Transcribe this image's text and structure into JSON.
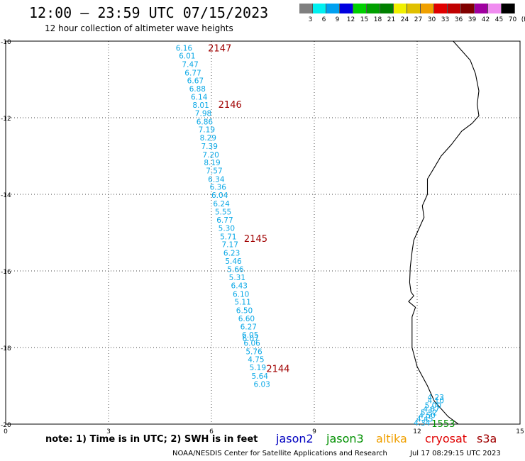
{
  "title": "12:00 – 23:59 UTC 07/15/2023",
  "subtitle": "12 hour collection of altimeter wave heights",
  "color_scale": {
    "labels": [
      "3",
      "6",
      "9",
      "12",
      "15",
      "18",
      "21",
      "24",
      "27",
      "30",
      "33",
      "36",
      "39",
      "42",
      "45",
      "70",
      "(ft)"
    ],
    "colors": [
      "#7f7f7f",
      "#00f0f0",
      "#00a0f0",
      "#0000e0",
      "#00d000",
      "#00a000",
      "#008000",
      "#f0f000",
      "#e0c000",
      "#f0a000",
      "#e00000",
      "#c00000",
      "#800000",
      "#a000a0",
      "#f08cf0",
      "#000000"
    ]
  },
  "note": "note:  1) Time is in UTC;  2) SWH is in feet",
  "satellites": [
    {
      "name": "jason2",
      "color": "#0000c0"
    },
    {
      "name": "jason3",
      "color": "#009000"
    },
    {
      "name": "altika",
      "color": "#f0a000"
    },
    {
      "name": "cryosat",
      "color": "#e00000"
    },
    {
      "name": "s3a",
      "color": "#a00000"
    }
  ],
  "footer": "NOAA/NESDIS Center for Satellite Applications and Research",
  "footer_time": "Jul 17 08:29:15 UTC 2023",
  "map": {
    "lat_ticks": [
      {
        "lat": -10,
        "label": "-10"
      },
      {
        "lat": -12,
        "label": "-12"
      },
      {
        "lat": -14,
        "label": "-14"
      },
      {
        "lat": -16,
        "label": "-16"
      },
      {
        "lat": -18,
        "label": "-18"
      },
      {
        "lat": -20,
        "label": "-20"
      }
    ],
    "lon_ticks": [
      {
        "lon": 0,
        "label": "0"
      },
      {
        "lon": 3,
        "label": "3"
      },
      {
        "lon": 6,
        "label": "6"
      },
      {
        "lon": 9,
        "label": "9"
      },
      {
        "lon": 12,
        "label": "12"
      },
      {
        "lon": 15,
        "label": "15"
      }
    ],
    "lon_range": [
      0,
      15
    ],
    "lat_range": [
      -20,
      -10
    ],
    "coastline": [
      [
        13.05,
        -10.0
      ],
      [
        13.25,
        -10.2
      ],
      [
        13.55,
        -10.5
      ],
      [
        13.7,
        -10.85
      ],
      [
        13.8,
        -11.3
      ],
      [
        13.75,
        -11.65
      ],
      [
        13.8,
        -11.95
      ],
      [
        13.6,
        -12.15
      ],
      [
        13.3,
        -12.35
      ],
      [
        13.0,
        -12.7
      ],
      [
        12.7,
        -13.0
      ],
      [
        12.5,
        -13.3
      ],
      [
        12.3,
        -13.6
      ],
      [
        12.3,
        -14.0
      ],
      [
        12.15,
        -14.3
      ],
      [
        12.2,
        -14.6
      ],
      [
        12.05,
        -14.9
      ],
      [
        11.9,
        -15.2
      ],
      [
        11.85,
        -15.5
      ],
      [
        11.8,
        -15.9
      ],
      [
        11.78,
        -16.3
      ],
      [
        11.82,
        -16.55
      ],
      [
        11.9,
        -16.65
      ],
      [
        11.75,
        -16.8
      ],
      [
        11.95,
        -16.95
      ],
      [
        11.85,
        -17.2
      ],
      [
        11.85,
        -17.6
      ],
      [
        11.85,
        -18.0
      ],
      [
        12.0,
        -18.5
      ],
      [
        12.3,
        -19.0
      ],
      [
        12.5,
        -19.4
      ],
      [
        12.9,
        -19.8
      ],
      [
        13.2,
        -20.0
      ]
    ],
    "tracks": [
      {
        "id": "2147",
        "color": "#a00000",
        "label_pos": [
          5.9,
          -10.18
        ]
      },
      {
        "id": "2146",
        "color": "#a00000",
        "label_pos": [
          6.2,
          -11.65
        ]
      },
      {
        "id": "2145",
        "color": "#a00000",
        "label_pos": [
          6.95,
          -15.15
        ]
      },
      {
        "id": "2144",
        "color": "#a00000",
        "label_pos": [
          7.6,
          -18.55
        ]
      },
      {
        "id": "1553",
        "color": "#009000",
        "label_pos": [
          12.42,
          -19.98
        ]
      }
    ],
    "wave_points": [
      {
        "v": "6.16",
        "lon": 4.96,
        "lat": -10.18
      },
      {
        "v": "6.01",
        "lon": 5.05,
        "lat": -10.38
      },
      {
        "v": "7.47",
        "lon": 5.14,
        "lat": -10.6
      },
      {
        "v": "6.77",
        "lon": 5.22,
        "lat": -10.82
      },
      {
        "v": "6.67",
        "lon": 5.29,
        "lat": -11.03
      },
      {
        "v": "6.88",
        "lon": 5.35,
        "lat": -11.24
      },
      {
        "v": "6.14",
        "lon": 5.4,
        "lat": -11.45
      },
      {
        "v": "8.01",
        "lon": 5.45,
        "lat": -11.67
      },
      {
        "v": "7.98",
        "lon": 5.52,
        "lat": -11.88
      },
      {
        "v": "6.86",
        "lon": 5.56,
        "lat": -12.1
      },
      {
        "v": "7.19",
        "lon": 5.62,
        "lat": -12.31
      },
      {
        "v": "8.29",
        "lon": 5.66,
        "lat": -12.52
      },
      {
        "v": "7.39",
        "lon": 5.7,
        "lat": -12.74
      },
      {
        "v": "7.20",
        "lon": 5.74,
        "lat": -12.96
      },
      {
        "v": "8.19",
        "lon": 5.78,
        "lat": -13.17
      },
      {
        "v": "7.57",
        "lon": 5.84,
        "lat": -13.38
      },
      {
        "v": "6.34",
        "lon": 5.9,
        "lat": -13.6
      },
      {
        "v": "6.36",
        "lon": 5.95,
        "lat": -13.81
      },
      {
        "v": "6.04",
        "lon": 6.0,
        "lat": -14.02
      },
      {
        "v": "6.24",
        "lon": 6.05,
        "lat": -14.24
      },
      {
        "v": "5.55",
        "lon": 6.1,
        "lat": -14.45
      },
      {
        "v": "6.77",
        "lon": 6.15,
        "lat": -14.67
      },
      {
        "v": "5.30",
        "lon": 6.2,
        "lat": -14.88
      },
      {
        "v": "5.71",
        "lon": 6.25,
        "lat": -15.1
      },
      {
        "v": "7.17",
        "lon": 6.3,
        "lat": -15.31
      },
      {
        "v": "6.23",
        "lon": 6.35,
        "lat": -15.53
      },
      {
        "v": "5.46",
        "lon": 6.4,
        "lat": -15.74
      },
      {
        "v": "5.66",
        "lon": 6.46,
        "lat": -15.95
      },
      {
        "v": "5.31",
        "lon": 6.51,
        "lat": -16.17
      },
      {
        "v": "6.43",
        "lon": 6.57,
        "lat": -16.38
      },
      {
        "v": "6.10",
        "lon": 6.62,
        "lat": -16.6
      },
      {
        "v": "5.11",
        "lon": 6.67,
        "lat": -16.81
      },
      {
        "v": "6.50",
        "lon": 6.72,
        "lat": -17.03
      },
      {
        "v": "6.60",
        "lon": 6.78,
        "lat": -17.24
      },
      {
        "v": "6.27",
        "lon": 6.84,
        "lat": -17.45
      },
      {
        "v": "6.05",
        "lon": 6.89,
        "lat": -17.67
      },
      {
        "v": "6.07",
        "lon": 6.9,
        "lat": -17.76
      },
      {
        "v": "6.06",
        "lon": 6.94,
        "lat": -17.88
      },
      {
        "v": "5.76",
        "lon": 7.0,
        "lat": -18.1
      },
      {
        "v": "4.75",
        "lon": 7.06,
        "lat": -18.31
      },
      {
        "v": "5.19",
        "lon": 7.11,
        "lat": -18.52
      },
      {
        "v": "5.64",
        "lon": 7.17,
        "lat": -18.74
      },
      {
        "v": "6.03",
        "lon": 7.23,
        "lat": -18.95
      },
      {
        "v": "4.23",
        "lon": 12.3,
        "lat": -19.3
      },
      {
        "v": "4.10",
        "lon": 12.3,
        "lat": -19.38
      },
      {
        "v": "5.00",
        "lon": 12.22,
        "lat": -19.51
      },
      {
        "v": "4.67",
        "lon": 12.17,
        "lat": -19.6
      },
      {
        "v": "5.32",
        "lon": 12.1,
        "lat": -19.69
      },
      {
        "v": "4.50",
        "lon": 12.05,
        "lat": -19.77
      },
      {
        "v": "4.45",
        "lon": 11.98,
        "lat": -19.86
      },
      {
        "v": "4.34",
        "lon": 11.9,
        "lat": -19.96
      }
    ]
  }
}
